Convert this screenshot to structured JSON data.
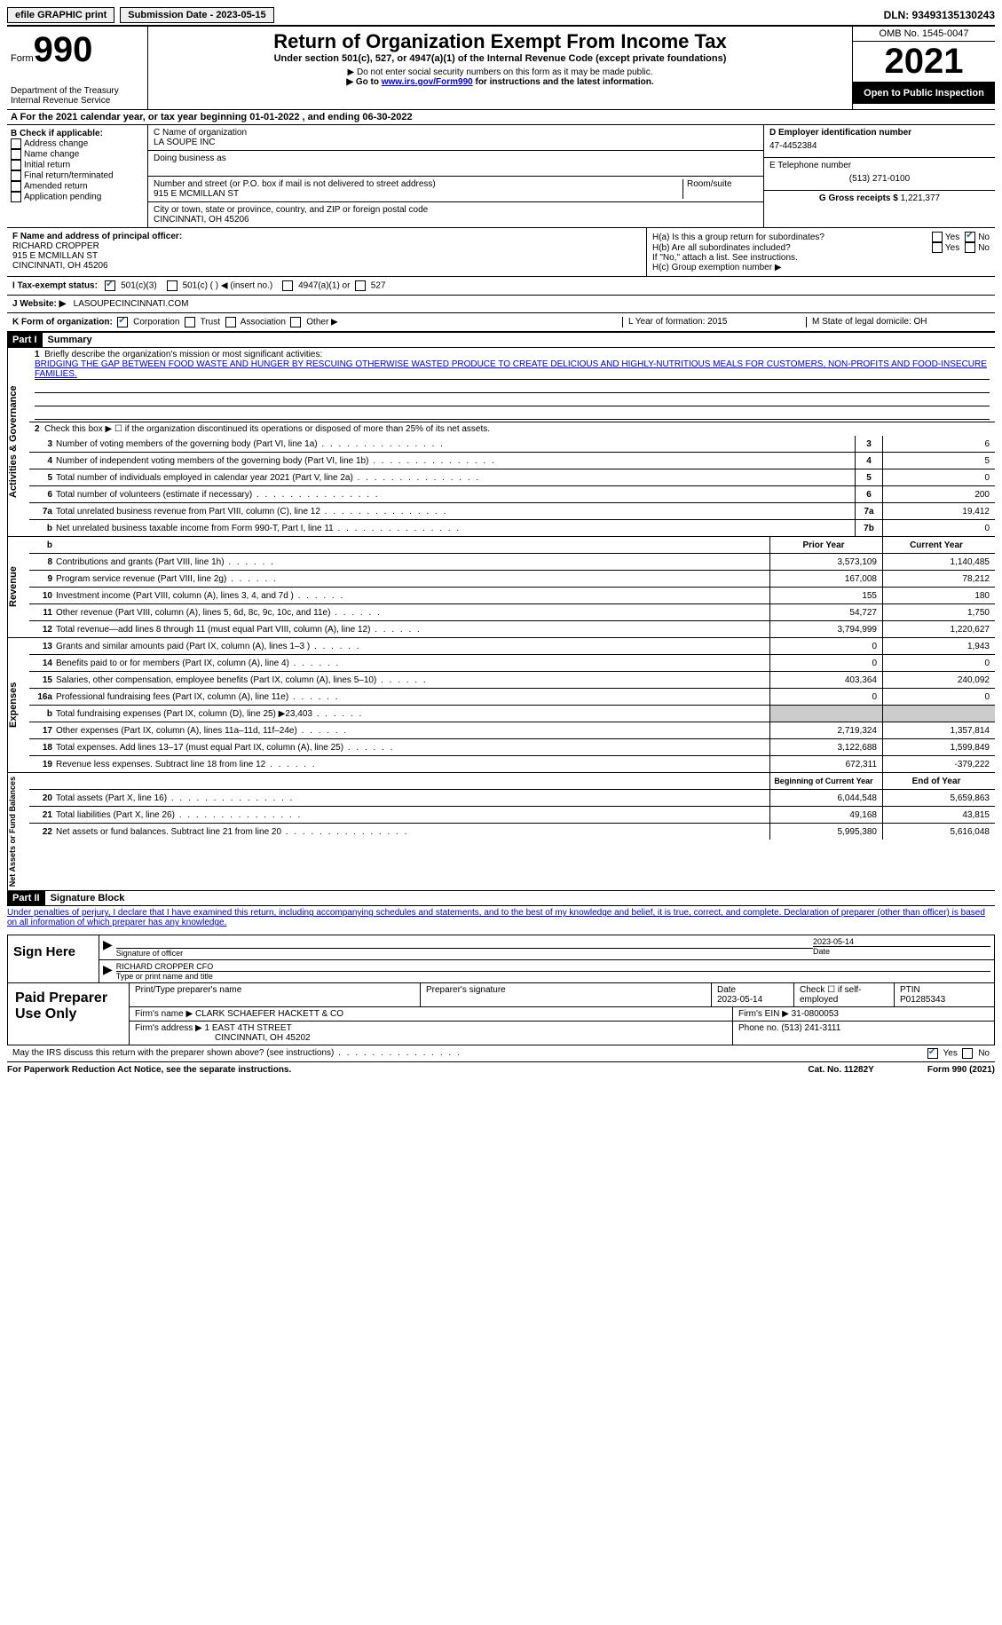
{
  "topbar": {
    "efile": "efile GRAPHIC print",
    "submission": "Submission Date - 2023-05-15",
    "dln": "DLN: 93493135130243"
  },
  "header": {
    "form_label": "Form",
    "form_num": "990",
    "dept": "Department of the Treasury Internal Revenue Service",
    "title": "Return of Organization Exempt From Income Tax",
    "subtitle": "Under section 501(c), 527, or 4947(a)(1) of the Internal Revenue Code (except private foundations)",
    "note1": "▶ Do not enter social security numbers on this form as it may be made public.",
    "note2_pre": "▶ Go to ",
    "note2_link": "www.irs.gov/Form990",
    "note2_post": " for instructions and the latest information.",
    "omb": "OMB No. 1545-0047",
    "year": "2021",
    "inspection": "Open to Public Inspection"
  },
  "row_a": "A For the 2021 calendar year, or tax year beginning 01-01-2022   , and ending 06-30-2022",
  "section_b": {
    "b_label": "B Check if applicable:",
    "opts": [
      "Address change",
      "Name change",
      "Initial return",
      "Final return/terminated",
      "Amended return",
      "Application pending"
    ],
    "c_label": "C Name of organization",
    "org": "LA SOUPE INC",
    "dba_label": "Doing business as",
    "street_label": "Number and street (or P.O. box if mail is not delivered to street address)",
    "room_label": "Room/suite",
    "street": "915 E MCMILLAN ST",
    "city_label": "City or town, state or province, country, and ZIP or foreign postal code",
    "city": "CINCINNATI, OH  45206",
    "d_label": "D Employer identification number",
    "ein": "47-4452384",
    "e_label": "E Telephone number",
    "phone": "(513) 271-0100",
    "g_label": "G Gross receipts $",
    "gross": "1,221,377"
  },
  "fh": {
    "f_label": "F Name and address of principal officer:",
    "f_name": "RICHARD CROPPER",
    "f_addr1": "915 E MCMILLAN ST",
    "f_addr2": "CINCINNATI, OH  45206",
    "ha": "H(a)  Is this a group return for subordinates?",
    "hb": "H(b)  Are all subordinates included?",
    "h_note": "If \"No,\" attach a list. See instructions.",
    "hc": "H(c)  Group exemption number ▶",
    "yes": "Yes",
    "no": "No"
  },
  "row_i": {
    "label": "I  Tax-exempt status:",
    "o1": "501(c)(3)",
    "o2": "501(c) (  ) ◀ (insert no.)",
    "o3": "4947(a)(1) or",
    "o4": "527"
  },
  "row_j": {
    "label": "J  Website: ▶",
    "val": "LASOUPECINCINNATI.COM"
  },
  "row_k": {
    "label": "K Form of organization:",
    "o1": "Corporation",
    "o2": "Trust",
    "o3": "Association",
    "o4": "Other ▶",
    "l": "L Year of formation: 2015",
    "m": "M State of legal domicile: OH"
  },
  "part1": {
    "tag": "Part I",
    "title": "Summary"
  },
  "summary": {
    "l1": "Briefly describe the organization's mission or most significant activities:",
    "mission": "BRIDGING THE GAP BETWEEN FOOD WASTE AND HUNGER BY RESCUING OTHERWISE WASTED PRODUCE TO CREATE DELICIOUS AND HIGHLY-NUTRITIOUS MEALS FOR CUSTOMERS, NON-PROFITS AND FOOD-INSECURE FAMILIES.",
    "l2": "Check this box ▶ ☐ if the organization discontinued its operations or disposed of more than 25% of its net assets.",
    "lines_gov": [
      {
        "n": "3",
        "d": "Number of voting members of the governing body (Part VI, line 1a)",
        "box": "3",
        "v": "6"
      },
      {
        "n": "4",
        "d": "Number of independent voting members of the governing body (Part VI, line 1b)",
        "box": "4",
        "v": "5"
      },
      {
        "n": "5",
        "d": "Total number of individuals employed in calendar year 2021 (Part V, line 2a)",
        "box": "5",
        "v": "0"
      },
      {
        "n": "6",
        "d": "Total number of volunteers (estimate if necessary)",
        "box": "6",
        "v": "200"
      },
      {
        "n": "7a",
        "d": "Total unrelated business revenue from Part VIII, column (C), line 12",
        "box": "7a",
        "v": "19,412"
      },
      {
        "n": "b",
        "d": "Net unrelated business taxable income from Form 990-T, Part I, line 11",
        "box": "7b",
        "v": "0"
      }
    ],
    "col_prior": "Prior Year",
    "col_current": "Current Year",
    "revenue": [
      {
        "n": "8",
        "d": "Contributions and grants (Part VIII, line 1h)",
        "p": "3,573,109",
        "c": "1,140,485"
      },
      {
        "n": "9",
        "d": "Program service revenue (Part VIII, line 2g)",
        "p": "167,008",
        "c": "78,212"
      },
      {
        "n": "10",
        "d": "Investment income (Part VIII, column (A), lines 3, 4, and 7d )",
        "p": "155",
        "c": "180"
      },
      {
        "n": "11",
        "d": "Other revenue (Part VIII, column (A), lines 5, 6d, 8c, 9c, 10c, and 11e)",
        "p": "54,727",
        "c": "1,750"
      },
      {
        "n": "12",
        "d": "Total revenue—add lines 8 through 11 (must equal Part VIII, column (A), line 12)",
        "p": "3,794,999",
        "c": "1,220,627"
      }
    ],
    "expenses": [
      {
        "n": "13",
        "d": "Grants and similar amounts paid (Part IX, column (A), lines 1–3 )",
        "p": "0",
        "c": "1,943"
      },
      {
        "n": "14",
        "d": "Benefits paid to or for members (Part IX, column (A), line 4)",
        "p": "0",
        "c": "0"
      },
      {
        "n": "15",
        "d": "Salaries, other compensation, employee benefits (Part IX, column (A), lines 5–10)",
        "p": "403,364",
        "c": "240,092"
      },
      {
        "n": "16a",
        "d": "Professional fundraising fees (Part IX, column (A), line 11e)",
        "p": "0",
        "c": "0"
      },
      {
        "n": "b",
        "d": "Total fundraising expenses (Part IX, column (D), line 25) ▶23,403",
        "p": "",
        "c": "",
        "shade": true
      },
      {
        "n": "17",
        "d": "Other expenses (Part IX, column (A), lines 11a–11d, 11f–24e)",
        "p": "2,719,324",
        "c": "1,357,814"
      },
      {
        "n": "18",
        "d": "Total expenses. Add lines 13–17 (must equal Part IX, column (A), line 25)",
        "p": "3,122,688",
        "c": "1,599,849"
      },
      {
        "n": "19",
        "d": "Revenue less expenses. Subtract line 18 from line 12",
        "p": "672,311",
        "c": "-379,222"
      }
    ],
    "col_begin": "Beginning of Current Year",
    "col_end": "End of Year",
    "netassets": [
      {
        "n": "20",
        "d": "Total assets (Part X, line 16)",
        "p": "6,044,548",
        "c": "5,659,863"
      },
      {
        "n": "21",
        "d": "Total liabilities (Part X, line 26)",
        "p": "49,168",
        "c": "43,815"
      },
      {
        "n": "22",
        "d": "Net assets or fund balances. Subtract line 21 from line 20",
        "p": "5,995,380",
        "c": "5,616,048"
      }
    ]
  },
  "side_labels": {
    "gov": "Activities & Governance",
    "rev": "Revenue",
    "exp": "Expenses",
    "net": "Net Assets or Fund Balances"
  },
  "part2": {
    "tag": "Part II",
    "title": "Signature Block"
  },
  "penalties": "Under penalties of perjury, I declare that I have examined this return, including accompanying schedules and statements, and to the best of my knowledge and belief, it is true, correct, and complete. Declaration of preparer (other than officer) is based on all information of which preparer has any knowledge.",
  "sign": {
    "here": "Sign Here",
    "sig_of_officer": "Signature of officer",
    "date": "Date",
    "date_val": "2023-05-14",
    "name": "RICHARD CROPPER  CFO",
    "name_label": "Type or print name and title"
  },
  "prep": {
    "title": "Paid Preparer Use Only",
    "h1": "Print/Type preparer's name",
    "h2": "Preparer's signature",
    "h3": "Date",
    "h3v": "2023-05-14",
    "h4": "Check ☐ if self-employed",
    "h5": "PTIN",
    "h5v": "P01285343",
    "firm_name_l": "Firm's name    ▶",
    "firm_name": "CLARK SCHAEFER HACKETT & CO",
    "firm_ein_l": "Firm's EIN ▶",
    "firm_ein": "31-0800053",
    "firm_addr_l": "Firm's address ▶",
    "firm_addr1": "1 EAST 4TH STREET",
    "firm_addr2": "CINCINNATI, OH  45202",
    "phone_l": "Phone no.",
    "phone": "(513) 241-3111"
  },
  "footer": {
    "discuss": "May the IRS discuss this return with the preparer shown above? (see instructions)",
    "yes": "Yes",
    "no": "No",
    "paperwork": "For Paperwork Reduction Act Notice, see the separate instructions.",
    "cat": "Cat. No. 11282Y",
    "form": "Form 990 (2021)"
  }
}
